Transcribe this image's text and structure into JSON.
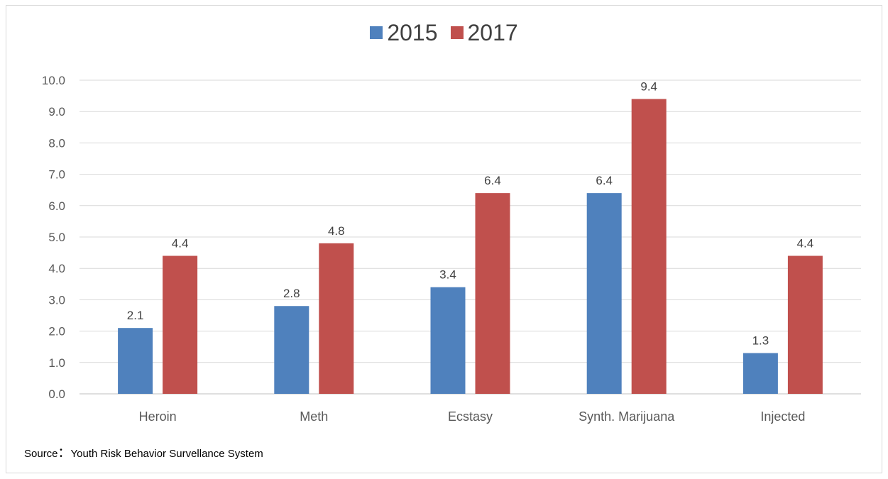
{
  "chart_data": {
    "type": "bar",
    "title": "",
    "xlabel": "",
    "ylabel": "",
    "categories": [
      "Heroin",
      "Meth",
      "Ecstasy",
      "Synth. Marijuana",
      "Injected"
    ],
    "series": [
      {
        "name": "2015",
        "color": "#4f81bd",
        "values": [
          2.1,
          2.8,
          3.4,
          6.4,
          1.3
        ],
        "labels": [
          "2.1",
          "2.8",
          "3.4",
          "6.4",
          "1.3"
        ]
      },
      {
        "name": "2017",
        "color": "#c0504d",
        "values": [
          4.4,
          4.8,
          6.4,
          9.4,
          4.4
        ],
        "labels": [
          "4.4",
          "4.8",
          "6.4",
          "9.4",
          "4.4"
        ]
      }
    ],
    "ylim": [
      0,
      10
    ],
    "yticks": [
      "0.0",
      "1.0",
      "2.0",
      "3.0",
      "4.0",
      "5.0",
      "6.0",
      "7.0",
      "8.0",
      "9.0",
      "10.0"
    ],
    "grid": true,
    "legend_position": "top"
  },
  "source": {
    "prefix": "Source",
    "separator": "：",
    "text": "Youth Risk Behavior Survellance System"
  }
}
